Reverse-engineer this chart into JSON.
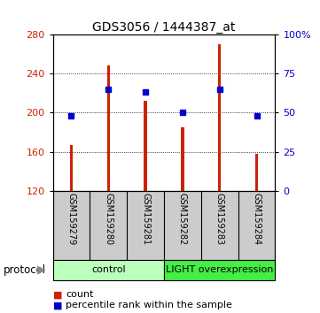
{
  "title": "GDS3056 / 1444387_at",
  "samples": [
    "GSM159279",
    "GSM159280",
    "GSM159281",
    "GSM159282",
    "GSM159283",
    "GSM159284"
  ],
  "count_values": [
    167,
    248,
    212,
    185,
    270,
    158
  ],
  "percentile_values": [
    48,
    65,
    63,
    50,
    65,
    48
  ],
  "ymin": 120,
  "ymax": 280,
  "y2min": 0,
  "y2max": 100,
  "yticks": [
    120,
    160,
    200,
    240,
    280
  ],
  "y2ticks": [
    0,
    25,
    50,
    75,
    100
  ],
  "bar_color": "#cc2200",
  "dot_color": "#0000cc",
  "bar_width": 0.08,
  "group_info": [
    {
      "label": "control",
      "start": 0,
      "end": 2,
      "color": "#bbffbb"
    },
    {
      "label": "LIGHT overexpression",
      "start": 3,
      "end": 5,
      "color": "#44ee44"
    }
  ],
  "protocol_label": "protocol",
  "legend_items": [
    "count",
    "percentile rank within the sample"
  ],
  "background_color": "#ffffff",
  "tick_label_color_left": "#cc2200",
  "tick_label_color_right": "#0000cc",
  "title_fontsize": 10,
  "tick_fontsize": 8,
  "sample_label_fontsize": 7,
  "legend_fontsize": 8
}
